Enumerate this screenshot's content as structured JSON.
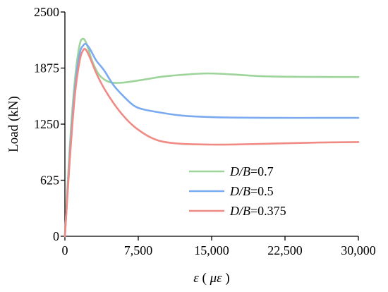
{
  "chart_data": {
    "type": "line",
    "xlabel": "ε (με)",
    "ylabel": "Load (kN)",
    "xlim": [
      0,
      30000
    ],
    "ylim": [
      0,
      2500
    ],
    "xticks": [
      0,
      7500,
      15000,
      22500,
      30000
    ],
    "xtick_labels": [
      "0",
      "7,500",
      "15,000",
      "22,500",
      "30,000"
    ],
    "yticks": [
      0,
      625,
      1250,
      1875,
      2500
    ],
    "ytick_labels": [
      "0",
      "625",
      "1250",
      "1875",
      "2500"
    ],
    "grid": false,
    "legend_position": "bottom-right",
    "series": [
      {
        "name": "D/B=0.7",
        "label_var": "D/B",
        "label_val": "=0.7",
        "color": "#9dd49a",
        "x": [
          0,
          500,
          1000,
          1500,
          1900,
          2300,
          2800,
          3500,
          4500,
          5500,
          6500,
          8000,
          10000,
          12000,
          14500,
          17000,
          20000,
          23000,
          26000,
          30000
        ],
        "y": [
          0,
          1000,
          1720,
          2130,
          2200,
          2120,
          1950,
          1800,
          1720,
          1710,
          1720,
          1745,
          1780,
          1800,
          1815,
          1805,
          1785,
          1778,
          1776,
          1775
        ]
      },
      {
        "name": "D/B=0.5",
        "label_var": "D/B",
        "label_val": "=0.5",
        "color": "#7aaaf0",
        "x": [
          0,
          500,
          1000,
          1500,
          1900,
          2200,
          2600,
          3200,
          4000,
          5000,
          6000,
          7000,
          8000,
          10000,
          12000,
          15000,
          18000,
          22000,
          26000,
          30000
        ],
        "y": [
          0,
          900,
          1620,
          2030,
          2130,
          2140,
          2080,
          1960,
          1850,
          1680,
          1560,
          1460,
          1415,
          1375,
          1345,
          1328,
          1322,
          1320,
          1320,
          1320
        ]
      },
      {
        "name": "D/B=0.375",
        "label_var": "D/B",
        "label_val": "=0.375",
        "color": "#ef8a84",
        "x": [
          0,
          500,
          1000,
          1500,
          1900,
          2200,
          2600,
          3200,
          4000,
          5000,
          6000,
          7000,
          8000,
          9000,
          10000,
          12000,
          15000,
          18000,
          22000,
          26000,
          30000
        ],
        "y": [
          0,
          850,
          1550,
          1950,
          2080,
          2070,
          1980,
          1820,
          1650,
          1480,
          1340,
          1230,
          1150,
          1090,
          1055,
          1030,
          1022,
          1025,
          1035,
          1045,
          1050
        ]
      }
    ]
  }
}
